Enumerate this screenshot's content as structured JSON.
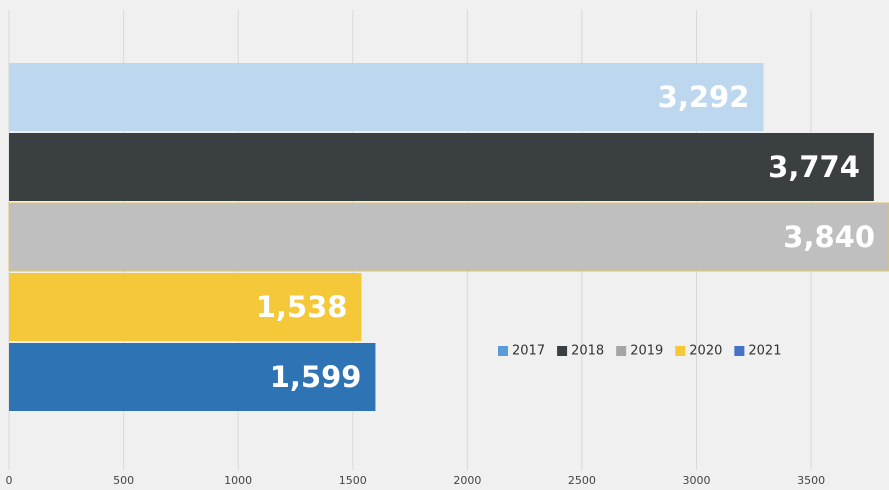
{
  "chart_data": {
    "type": "bar",
    "orientation": "horizontal",
    "xlim": [
      0,
      3840
    ],
    "xticks": [
      0,
      500,
      1000,
      1500,
      2000,
      2500,
      3000,
      3500
    ],
    "grid": true,
    "legend": "right",
    "series": [
      {
        "name": "2017",
        "color": "#bdd7ee",
        "legend_color": "#5b9bd5",
        "values": [
          3292
        ],
        "value_labels": [
          "3,292"
        ]
      },
      {
        "name": "2018",
        "color": "#3a3f42",
        "legend_color": "#3a3f42",
        "values": [
          3774
        ],
        "value_labels": [
          "3,774"
        ]
      },
      {
        "name": "2019",
        "color": "#bfbfbf",
        "legend_color": "#a5a5a5",
        "values": [
          3840
        ],
        "value_labels": [
          "3,840"
        ]
      },
      {
        "name": "2020",
        "color": "#f4c838",
        "legend_color": "#f4c838",
        "values": [
          1538
        ],
        "value_labels": [
          "1,538"
        ]
      },
      {
        "name": "2021",
        "color": "#2e74b5",
        "legend_color": "#4472c4",
        "values": [
          1599
        ],
        "value_labels": [
          "1,599"
        ]
      }
    ]
  }
}
